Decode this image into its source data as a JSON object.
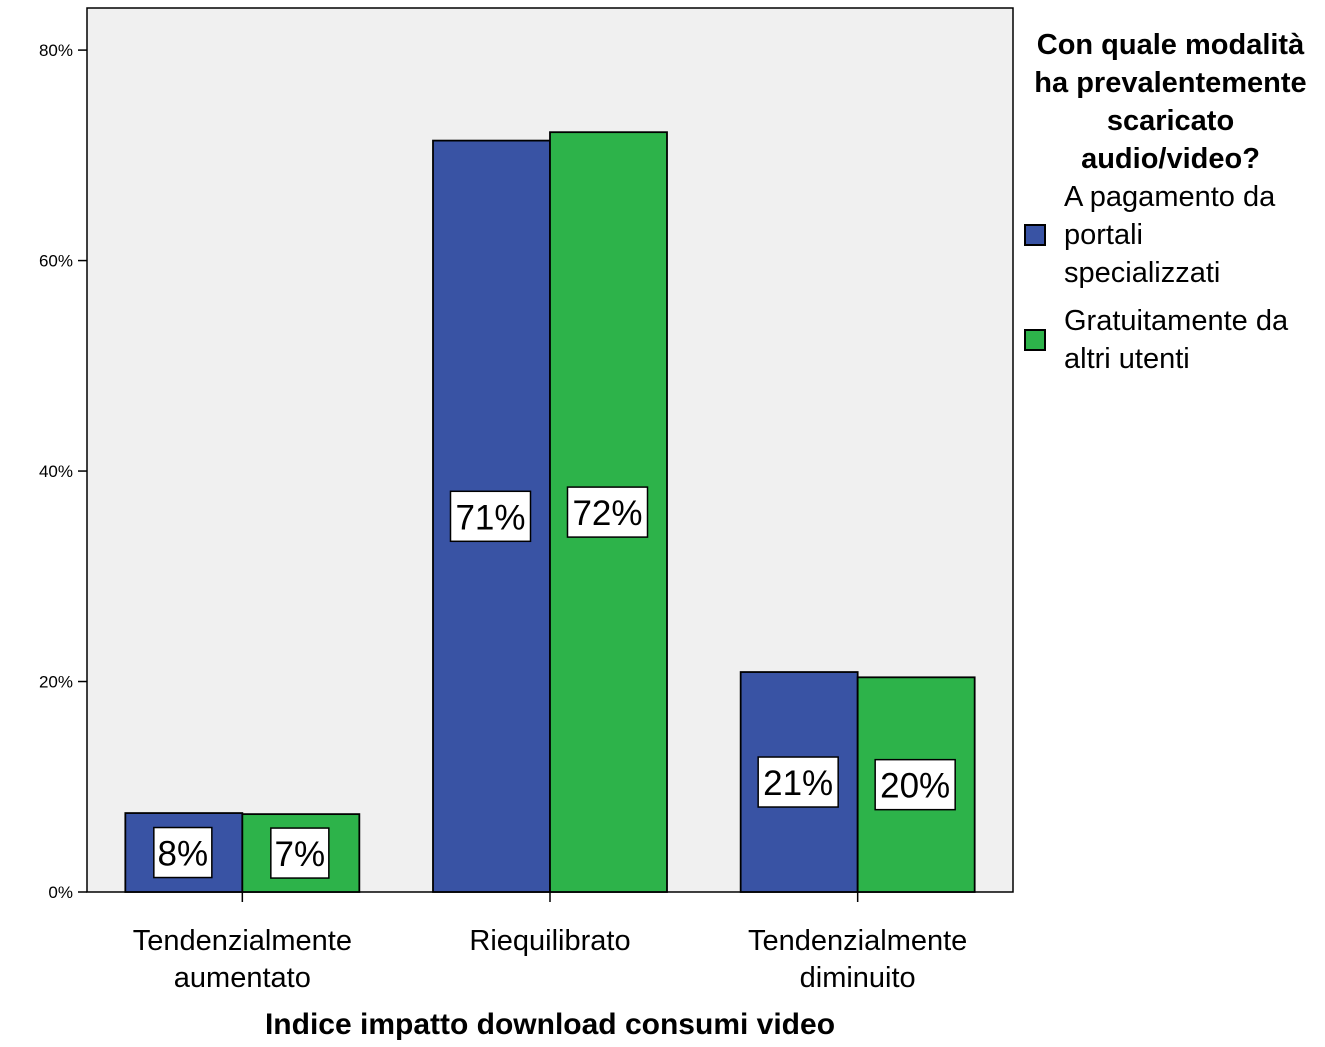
{
  "chart_data": {
    "type": "bar",
    "categories": [
      "Tendenzialmente aumentato",
      "Riequilibrato",
      "Tendenzialmente diminuito"
    ],
    "category_label_lines": [
      [
        "Tendenzialmente",
        "aumentato"
      ],
      [
        "Riequilibrato"
      ],
      [
        "Tendenzialmente",
        "diminuito"
      ]
    ],
    "series": [
      {
        "name": "A pagamento da portali specializzati",
        "values": [
          7.5,
          71.4,
          20.9
        ],
        "labels": [
          "8%",
          "71%",
          "21%"
        ],
        "color": "#3953a4"
      },
      {
        "name": "Gratuitamente da altri utenti",
        "values": [
          7.4,
          72.2,
          20.4
        ],
        "labels": [
          "7%",
          "72%",
          "20%"
        ],
        "color": "#2db34a"
      }
    ],
    "xlabel": "Indice impatto download consumi video",
    "ylabel": "",
    "ylim": [
      0,
      84
    ],
    "yticks": [
      0,
      20,
      40,
      60,
      80
    ],
    "ytick_labels": [
      "0%",
      "20%",
      "40%",
      "60%",
      "80%"
    ],
    "grid": false,
    "plot_background": "#f0f0f0",
    "legend_position": "right",
    "legend": {
      "title": "Con quale modalità ha prevalentemente scaricato audio/video?",
      "items": [
        {
          "label_lines": [
            "A pagamento da",
            "portali",
            "specializzati"
          ]
        },
        {
          "label_lines": [
            "Gratuitamente da",
            "altri utenti"
          ]
        }
      ]
    }
  }
}
